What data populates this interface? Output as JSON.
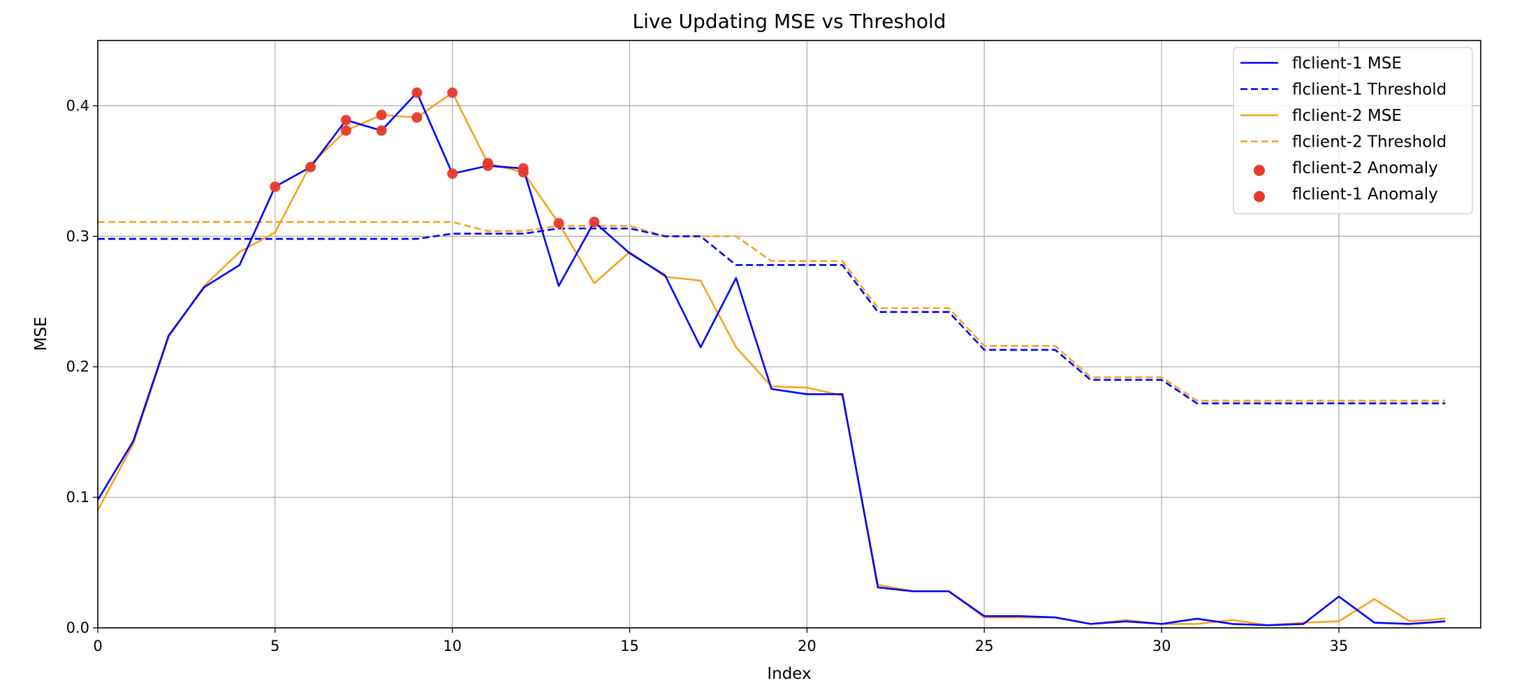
{
  "chart_data": {
    "type": "line",
    "title": "Live Updating MSE vs Threshold",
    "xlabel": "Index",
    "ylabel": "MSE",
    "xlim": [
      0,
      39
    ],
    "ylim": [
      0,
      0.45
    ],
    "xticks": [
      0,
      5,
      10,
      15,
      20,
      25,
      30,
      35
    ],
    "yticks": [
      0.0,
      0.1,
      0.2,
      0.3,
      0.4
    ],
    "grid": true,
    "legend_position": "top-right",
    "x": [
      0,
      1,
      2,
      3,
      4,
      5,
      6,
      7,
      8,
      9,
      10,
      11,
      12,
      13,
      14,
      15,
      16,
      17,
      18,
      19,
      20,
      21,
      22,
      23,
      24,
      25,
      26,
      27,
      28,
      29,
      30,
      31,
      32,
      33,
      34,
      35,
      36,
      37,
      38
    ],
    "series": [
      {
        "name": "flclient-1 MSE",
        "style": "solid",
        "color": "#0000ff",
        "values": [
          0.098,
          0.143,
          0.224,
          0.261,
          0.278,
          0.338,
          0.353,
          0.389,
          0.381,
          0.41,
          0.348,
          0.354,
          0.352,
          0.262,
          0.311,
          0.287,
          0.27,
          0.215,
          0.268,
          0.183,
          0.179,
          0.179,
          0.031,
          0.028,
          0.028,
          0.009,
          0.009,
          0.008,
          0.003,
          0.005,
          0.003,
          0.007,
          0.003,
          0.002,
          0.003,
          0.024,
          0.004,
          0.003,
          0.005
        ]
      },
      {
        "name": "flclient-1 Threshold",
        "style": "dashed",
        "color": "#0000ff",
        "values": [
          0.298,
          0.298,
          0.298,
          0.298,
          0.298,
          0.298,
          0.298,
          0.298,
          0.298,
          0.298,
          0.302,
          0.302,
          0.302,
          0.306,
          0.306,
          0.306,
          0.3,
          0.3,
          0.278,
          0.278,
          0.278,
          0.278,
          0.242,
          0.242,
          0.242,
          0.213,
          0.213,
          0.213,
          0.19,
          0.19,
          0.19,
          0.172,
          0.172,
          0.172,
          0.172,
          0.172,
          0.172,
          0.172,
          0.172
        ]
      },
      {
        "name": "flclient-2 MSE",
        "style": "solid",
        "color": "#f5a31f",
        "values": [
          0.09,
          0.141,
          0.223,
          0.262,
          0.288,
          0.303,
          0.355,
          0.381,
          0.393,
          0.391,
          0.41,
          0.356,
          0.349,
          0.31,
          0.264,
          0.288,
          0.269,
          0.266,
          0.215,
          0.185,
          0.184,
          0.178,
          0.033,
          0.028,
          0.028,
          0.008,
          0.008,
          0.008,
          0.003,
          0.006,
          0.003,
          0.003,
          0.006,
          0.002,
          0.004,
          0.005,
          0.022,
          0.005,
          0.007
        ]
      },
      {
        "name": "flclient-2 Threshold",
        "style": "dashed",
        "color": "#f5a31f",
        "values": [
          0.311,
          0.311,
          0.311,
          0.311,
          0.311,
          0.311,
          0.311,
          0.311,
          0.311,
          0.311,
          0.311,
          0.304,
          0.304,
          0.308,
          0.308,
          0.308,
          0.3,
          0.3,
          0.3,
          0.281,
          0.281,
          0.281,
          0.245,
          0.245,
          0.245,
          0.216,
          0.216,
          0.216,
          0.192,
          0.192,
          0.192,
          0.174,
          0.174,
          0.174,
          0.174,
          0.174,
          0.174,
          0.174,
          0.174
        ]
      }
    ],
    "anomalies": [
      {
        "name": "flclient-2 Anomaly",
        "color": "#e8392a",
        "points": [
          [
            7,
            0.381
          ],
          [
            8,
            0.393
          ],
          [
            9,
            0.391
          ],
          [
            10,
            0.41
          ],
          [
            11,
            0.356
          ],
          [
            12,
            0.349
          ],
          [
            13,
            0.31
          ]
        ]
      },
      {
        "name": "flclient-1 Anomaly",
        "color": "#e8392a",
        "points": [
          [
            5,
            0.338
          ],
          [
            6,
            0.353
          ],
          [
            7,
            0.389
          ],
          [
            8,
            0.381
          ],
          [
            9,
            0.41
          ],
          [
            10,
            0.348
          ],
          [
            11,
            0.354
          ],
          [
            12,
            0.352
          ],
          [
            14,
            0.311
          ]
        ]
      }
    ]
  }
}
